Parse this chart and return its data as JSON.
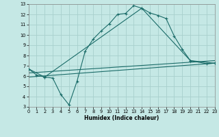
{
  "xlabel": "Humidex (Indice chaleur)",
  "xlim": [
    0,
    23
  ],
  "ylim": [
    3,
    13
  ],
  "xticks": [
    0,
    1,
    2,
    3,
    4,
    5,
    6,
    7,
    8,
    9,
    10,
    11,
    12,
    13,
    14,
    15,
    16,
    17,
    18,
    19,
    20,
    21,
    22,
    23
  ],
  "yticks": [
    3,
    4,
    5,
    6,
    7,
    8,
    9,
    10,
    11,
    12,
    13
  ],
  "bg_color": "#c5e8e5",
  "grid_color": "#a8d0cd",
  "line_color": "#1a6b68",
  "line1_x": [
    0,
    1,
    2,
    3,
    4,
    5,
    6,
    7,
    8,
    9,
    10,
    11,
    12,
    13,
    14,
    15,
    16,
    17,
    18,
    19,
    20,
    22,
    23
  ],
  "line1_y": [
    6.7,
    6.1,
    5.9,
    5.8,
    4.2,
    3.2,
    5.5,
    8.4,
    9.6,
    10.4,
    11.1,
    12.0,
    12.1,
    12.85,
    12.6,
    12.15,
    11.9,
    11.6,
    9.9,
    8.6,
    7.5,
    7.2,
    7.25
  ],
  "line2_x": [
    0,
    2,
    14,
    20,
    23
  ],
  "line2_y": [
    6.7,
    5.9,
    12.6,
    7.5,
    7.25
  ],
  "line3_x": [
    0,
    23
  ],
  "line3_y": [
    6.3,
    7.5
  ],
  "line4_x": [
    0,
    23
  ],
  "line4_y": [
    5.9,
    7.25
  ]
}
